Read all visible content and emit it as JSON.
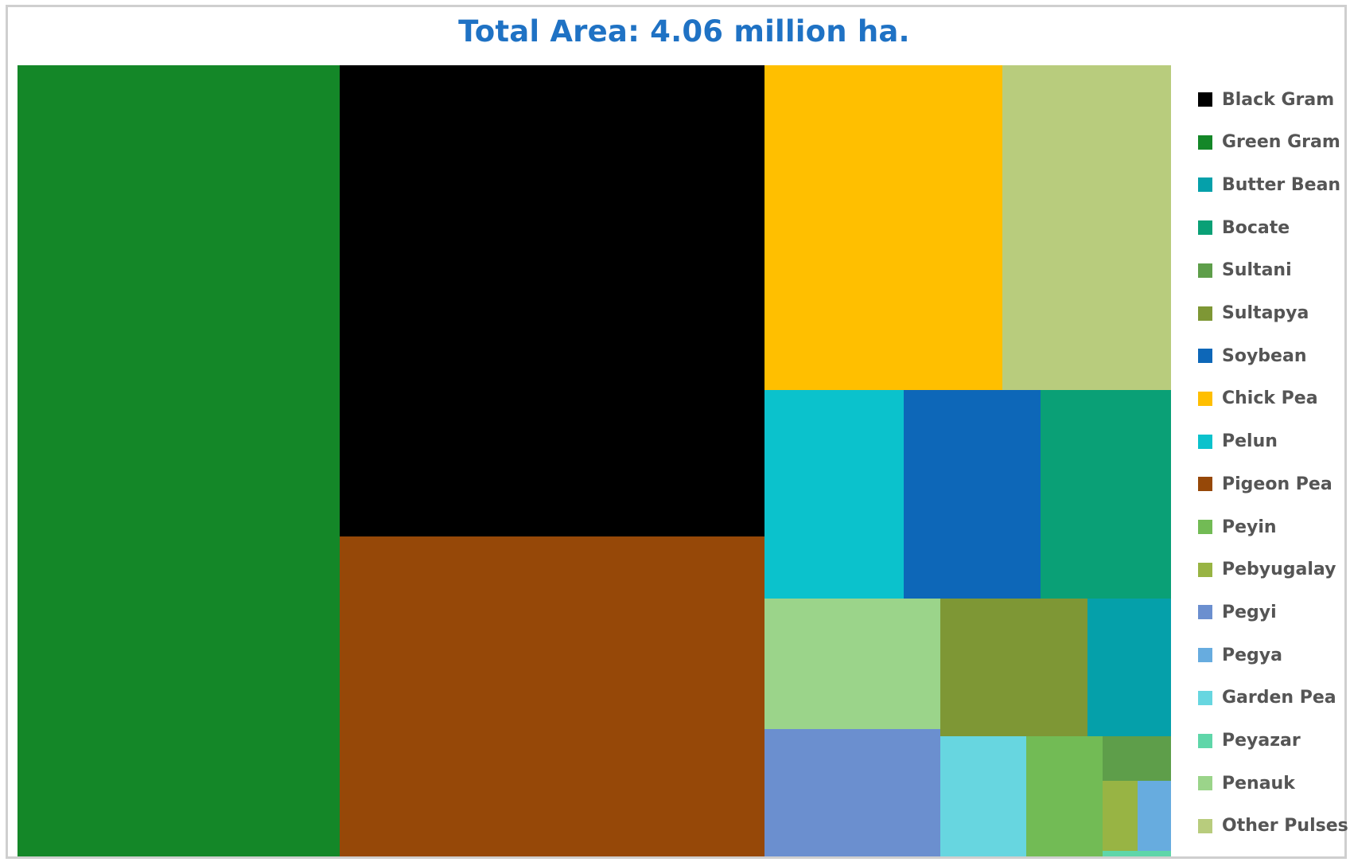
{
  "chart_data": {
    "type": "treemap",
    "title": "Total Area: 4.06 million ha.",
    "legend_position": "right",
    "grid": false,
    "legend": [
      {
        "name": "Black Gram",
        "color": "#000000"
      },
      {
        "name": "Green Gram",
        "color": "#148728"
      },
      {
        "name": "Butter Bean",
        "color": "#05a0aa"
      },
      {
        "name": "Bocate",
        "color": "#0aa076"
      },
      {
        "name": "Sultani",
        "color": "#5e9e4a"
      },
      {
        "name": "Sultapya",
        "color": "#7e9735"
      },
      {
        "name": "Soybean",
        "color": "#0d67b8"
      },
      {
        "name": "Chick Pea",
        "color": "#ffbf00"
      },
      {
        "name": "Pelun",
        "color": "#0bc2cc"
      },
      {
        "name": "Pigeon Pea",
        "color": "#964808"
      },
      {
        "name": "Peyin",
        "color": "#72bb55"
      },
      {
        "name": "Pebyugalay",
        "color": "#98b444"
      },
      {
        "name": "Pegyi",
        "color": "#6b8fcf"
      },
      {
        "name": "Pegya",
        "color": "#67acdf"
      },
      {
        "name": "Garden Pea",
        "color": "#67d6e0"
      },
      {
        "name": "Peyazar",
        "color": "#5fd6a9"
      },
      {
        "name": "Penauk",
        "color": "#9bd48a"
      },
      {
        "name": "Other Pulses",
        "color": "#b8cc7d"
      }
    ],
    "values_pct": [
      {
        "name": "Green Gram",
        "value": 25.6
      },
      {
        "name": "Black Gram",
        "value": 20.4
      },
      {
        "name": "Pigeon Pea",
        "value": 15.4
      },
      {
        "name": "Chick Pea",
        "value": 7.2
      },
      {
        "name": "Other Pulses",
        "value": 5.0
      },
      {
        "name": "Pelun",
        "value": 2.9
      },
      {
        "name": "Soybean",
        "value": 2.8
      },
      {
        "name": "Bocate",
        "value": 2.7
      },
      {
        "name": "Penauk",
        "value": 2.3
      },
      {
        "name": "Sultapya",
        "value": 2.0
      },
      {
        "name": "Butter Bean",
        "value": 1.1
      },
      {
        "name": "Pegyi",
        "value": 2.0
      },
      {
        "name": "Garden Pea",
        "value": 1.0
      },
      {
        "name": "Peyin",
        "value": 0.9
      },
      {
        "name": "Sultani",
        "value": 0.3
      },
      {
        "name": "Pebyugalay",
        "value": 0.3
      },
      {
        "name": "Pegya",
        "value": 0.2
      },
      {
        "name": "Peyazar",
        "value": 0.05
      }
    ]
  }
}
